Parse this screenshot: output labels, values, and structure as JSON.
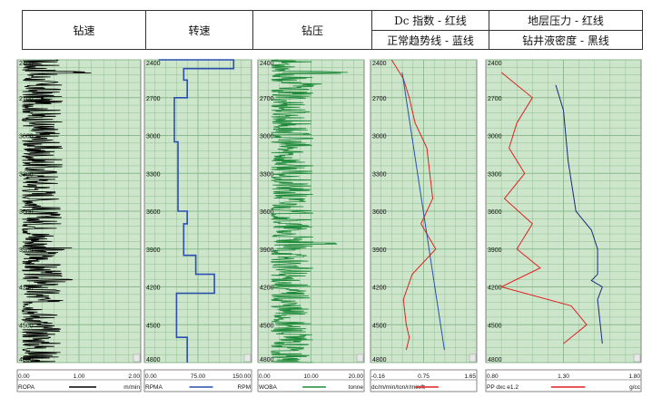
{
  "header": {
    "cols": [
      {
        "lines": [
          "钻速"
        ]
      },
      {
        "lines": [
          "转速"
        ]
      },
      {
        "lines": [
          "钻压"
        ]
      },
      {
        "lines": [
          "Dc 指数 - 红线",
          "正常趋势线 - 蓝线"
        ]
      },
      {
        "lines": [
          "地层压力 - 红线",
          "钻井液密度 - 黑线"
        ]
      }
    ]
  },
  "chart_data": [
    {
      "type": "line",
      "y_axis": {
        "label": "depth",
        "ylim": [
          2400,
          4800
        ],
        "reversed": true,
        "ticks": [
          2400,
          2700,
          3000,
          3300,
          3600,
          3900,
          4200,
          4500,
          4800
        ]
      },
      "x_axis": {
        "xlim": [
          0,
          2
        ],
        "tick_labels": [
          "0.00",
          "1.00",
          "2.00"
        ]
      },
      "grid": true,
      "series": [
        {
          "name": "ROPA",
          "unit": "m/min",
          "color": "#000000",
          "style": "noisy trace mostly between 0.1 and 0.7, spikes to 1.2 near 2500 and 4150"
        }
      ]
    },
    {
      "type": "line",
      "y_axis": {
        "label": "depth",
        "ylim": [
          2400,
          4800
        ],
        "reversed": true,
        "ticks": [
          2400,
          2700,
          3000,
          3300,
          3600,
          3900,
          4200,
          4500,
          4800
        ]
      },
      "x_axis": {
        "xlim": [
          0,
          150
        ],
        "tick_labels": [
          "0.00",
          "75.00",
          "150.00"
        ]
      },
      "grid": true,
      "series": [
        {
          "name": "RPMA",
          "unit": "RPM",
          "color": "#2a4fb0",
          "points": [
            [
              20,
              2400
            ],
            [
              125,
              2400
            ],
            [
              125,
              2470
            ],
            [
              55,
              2470
            ],
            [
              55,
              2560
            ],
            [
              60,
              2560
            ],
            [
              60,
              2700
            ],
            [
              42,
              2700
            ],
            [
              42,
              3050
            ],
            [
              47,
              3050
            ],
            [
              47,
              3600
            ],
            [
              60,
              3600
            ],
            [
              60,
              3700
            ],
            [
              55,
              3700
            ],
            [
              55,
              3950
            ],
            [
              72,
              3950
            ],
            [
              72,
              4100
            ],
            [
              98,
              4100
            ],
            [
              98,
              4250
            ],
            [
              45,
              4250
            ],
            [
              45,
              4600
            ],
            [
              60,
              4600
            ],
            [
              60,
              4800
            ]
          ]
        }
      ]
    },
    {
      "type": "line",
      "y_axis": {
        "label": "depth",
        "ylim": [
          2400,
          4800
        ],
        "reversed": true,
        "ticks": [
          2400,
          2700,
          3000,
          3300,
          3600,
          3900,
          4200,
          4500,
          4800
        ]
      },
      "x_axis": {
        "xlim": [
          0,
          20
        ],
        "tick_labels": [
          "0.00",
          "10.00",
          "20.00"
        ]
      },
      "grid": true,
      "series": [
        {
          "name": "WOBA",
          "unit": "tonne",
          "color": "#1f8a3a",
          "style": "noisy trace mostly between 3 and 10 tonne, spikes to 17 near 2500 and 3850"
        }
      ]
    },
    {
      "type": "line",
      "y_axis": {
        "label": "depth",
        "ylim": [
          2400,
          4800
        ],
        "reversed": true,
        "ticks": [
          2400,
          2700,
          3000,
          3300,
          3600,
          3900,
          4200,
          4500,
          4800
        ]
      },
      "x_axis": {
        "xlim": [
          -0.16,
          1.65
        ],
        "tick_labels": [
          "-0.16",
          "0.75",
          "1.65"
        ]
      },
      "grid": true,
      "series": [
        {
          "name": "dc/m/min/ton/r/min/ft",
          "color": "#e02020",
          "points": [
            [
              0.2,
              2400
            ],
            [
              0.4,
              2550
            ],
            [
              0.5,
              2700
            ],
            [
              0.6,
              2900
            ],
            [
              0.8,
              3100
            ],
            [
              0.85,
              3300
            ],
            [
              0.9,
              3500
            ],
            [
              0.7,
              3700
            ],
            [
              0.95,
              3900
            ],
            [
              0.55,
              4100
            ],
            [
              0.4,
              4300
            ],
            [
              0.45,
              4500
            ],
            [
              0.5,
              4600
            ],
            [
              0.45,
              4700
            ]
          ]
        },
        {
          "name": "trend",
          "color": "#2a4fb0",
          "points": [
            [
              0.38,
              2500
            ],
            [
              1.1,
              4700
            ]
          ]
        }
      ]
    },
    {
      "type": "line",
      "y_axis": {
        "label": "depth",
        "ylim": [
          2400,
          4800
        ],
        "reversed": true,
        "ticks": [
          2400,
          2700,
          3000,
          3300,
          3600,
          3900,
          4200,
          4500,
          4800
        ]
      },
      "x_axis": {
        "xlim": [
          0.8,
          1.8
        ],
        "tick_labels": [
          "0.80",
          "1.30",
          "1.80"
        ]
      },
      "grid": true,
      "series": [
        {
          "name": "PP dxc e1.2",
          "unit": "g/cc",
          "color": "#e02020",
          "points": [
            [
              0.9,
              2500
            ],
            [
              1.1,
              2700
            ],
            [
              1.0,
              2900
            ],
            [
              0.95,
              3100
            ],
            [
              1.05,
              3300
            ],
            [
              0.92,
              3500
            ],
            [
              1.1,
              3700
            ],
            [
              1.0,
              3900
            ],
            [
              1.15,
              4050
            ],
            [
              0.9,
              4200
            ],
            [
              1.35,
              4350
            ],
            [
              1.45,
              4500
            ],
            [
              1.3,
              4650
            ]
          ]
        },
        {
          "name": "mud density",
          "color": "#1a2a7a",
          "points": [
            [
              1.25,
              2600
            ],
            [
              1.3,
              2800
            ],
            [
              1.33,
              3200
            ],
            [
              1.38,
              3600
            ],
            [
              1.48,
              3750
            ],
            [
              1.52,
              3900
            ],
            [
              1.52,
              4100
            ],
            [
              1.48,
              4150
            ],
            [
              1.55,
              4200
            ],
            [
              1.52,
              4300
            ],
            [
              1.55,
              4650
            ]
          ]
        }
      ]
    }
  ],
  "footers": [
    {
      "ticks": [
        "0.00",
        "1.00",
        "2.00"
      ],
      "name": "ROPA",
      "unit": "m/min",
      "line_color": "#000000"
    },
    {
      "ticks": [
        "0.00",
        "75.00",
        "150.00"
      ],
      "name": "RPMA",
      "unit": "RPM",
      "line_color": "#2a4fb0"
    },
    {
      "ticks": [
        "0.00",
        "10.00",
        "20.00"
      ],
      "name": "WOBA",
      "unit": "tonne",
      "line_color": "#1f8a3a"
    },
    {
      "ticks": [
        "-0.16",
        "0.75",
        "1.65"
      ],
      "name": "dc/m/min/ton/r/min/ft",
      "unit": "",
      "line_color": "#e02020"
    },
    {
      "ticks": [
        "0.80",
        "1.30",
        "1.80"
      ],
      "name": "PP dxc e1.2",
      "unit": "g/cc",
      "line_color": "#e02020"
    }
  ],
  "colors": {
    "plot_bg": "#cde6cb",
    "grid": "#8ab98c"
  }
}
